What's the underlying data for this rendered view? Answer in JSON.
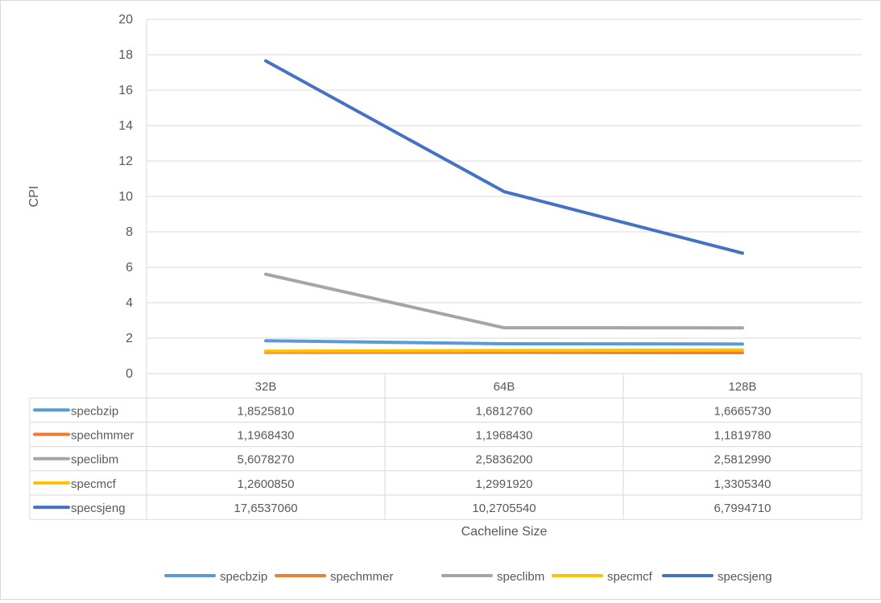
{
  "chart_data": {
    "type": "line",
    "title": "",
    "xlabel": "Cacheline Size",
    "ylabel": "CPI",
    "ylim": [
      0,
      20
    ],
    "ytick_step": 2,
    "categories": [
      "32B",
      "64B",
      "128B"
    ],
    "grid": true,
    "legend_position": "bottom",
    "data_table": true,
    "series": [
      {
        "name": "specbzip",
        "color": "#5B9BD5",
        "values": [
          1.852581,
          1.681276,
          1.666573
        ],
        "labels": [
          "1,8525810",
          "1,6812760",
          "1,6665730"
        ]
      },
      {
        "name": "spechmmer",
        "color": "#ED7D31",
        "values": [
          1.196843,
          1.196843,
          1.181978
        ],
        "labels": [
          "1,1968430",
          "1,1968430",
          "1,1819780"
        ]
      },
      {
        "name": "speclibm",
        "color": "#A5A5A5",
        "values": [
          5.607827,
          2.58362,
          2.581299
        ],
        "labels": [
          "5,6078270",
          "2,5836200",
          "2,5812990"
        ]
      },
      {
        "name": "specmcf",
        "color": "#FFC000",
        "values": [
          1.260085,
          1.299192,
          1.330534
        ],
        "labels": [
          "1,2600850",
          "1,2991920",
          "1,3305340"
        ]
      },
      {
        "name": "specsjeng",
        "color": "#4472C4",
        "values": [
          17.653706,
          10.270554,
          6.799471
        ],
        "labels": [
          "17,6537060",
          "10,2705540",
          "6,7994710"
        ]
      }
    ]
  }
}
